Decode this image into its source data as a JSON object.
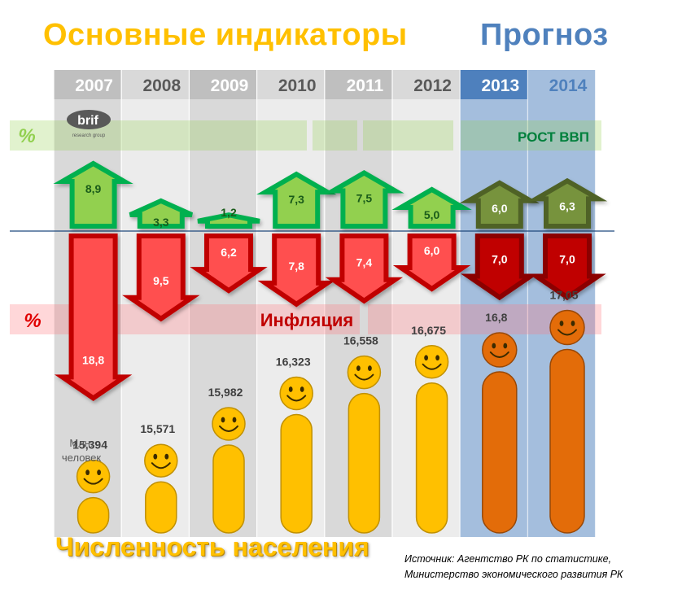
{
  "titles": {
    "main": "Основные индикаторы",
    "forecast": "Прогноз"
  },
  "colors": {
    "title": "#ffc000",
    "forecast": "#4f81bd",
    "gdp_actual": "#92d050",
    "gdp_forecast": "#77933c",
    "inflation_actual": "#ff5050",
    "inflation_forecast": "#c00000",
    "population_actual": "#ffc000",
    "population_forecast": "#e36c09"
  },
  "logo": {
    "text": "brif",
    "subtext": "research group"
  },
  "bands": {
    "gdp_symbol": "%",
    "gdp_label": "РОСТ ВВП",
    "inflation_symbol": "%",
    "inflation_label": "Инфляция"
  },
  "population_unit": "Млн. человек",
  "footer": {
    "title": "Численность населения",
    "source_line1": "Источник: Агентство РК по статистике,",
    "source_line2": "Министерство экономического развития РК"
  },
  "chart_data": {
    "type": "bar",
    "categories": [
      "2007",
      "2008",
      "2009",
      "2010",
      "2011",
      "2012",
      "2013",
      "2014"
    ],
    "forecast_from": "2013",
    "series": [
      {
        "name": "РОСТ ВВП",
        "unit": "%",
        "values": [
          8.9,
          3.3,
          1.2,
          7.3,
          7.5,
          5.0,
          6.0,
          6.3
        ],
        "labels": [
          "8,9",
          "3,3",
          "1,2",
          "7,3",
          "7,5",
          "5,0",
          "6,0",
          "6,3"
        ]
      },
      {
        "name": "Инфляция",
        "unit": "%",
        "values": [
          18.8,
          9.5,
          6.2,
          7.8,
          7.4,
          6.0,
          7.0,
          7.0
        ],
        "labels": [
          "18,8",
          "9,5",
          "6,2",
          "7,8",
          "7,4",
          "6,0",
          "7,0",
          "7,0"
        ]
      },
      {
        "name": "Численность населения",
        "unit": "Млн. человек",
        "values": [
          15.394,
          15.571,
          15.982,
          16.323,
          16.558,
          16.675,
          16.8,
          17.05
        ],
        "labels": [
          "15,394",
          "15,571",
          "15,982",
          "16,323",
          "16,558",
          "16,675",
          "16,8",
          "17,05"
        ]
      }
    ]
  }
}
